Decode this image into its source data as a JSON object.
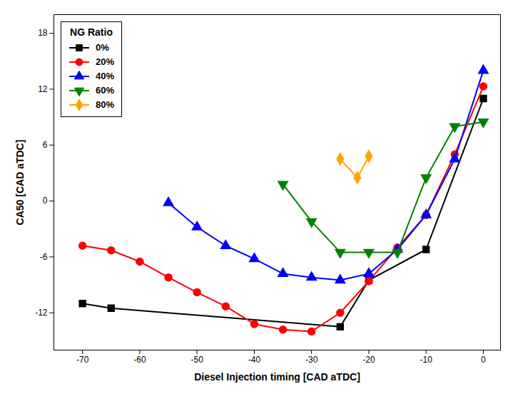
{
  "chart_data": {
    "type": "line",
    "xlabel": "Diesel Injection timing [CAD aTDC]",
    "ylabel": "CA50 [CAD aTDC]",
    "xlim": [
      -75,
      3
    ],
    "ylim": [
      -16,
      20
    ],
    "xticks": [
      -70,
      -60,
      -50,
      -40,
      -30,
      -20,
      -10,
      0
    ],
    "yticks": [
      -12,
      -6,
      0,
      6,
      12,
      18
    ],
    "grid": false,
    "legend": "upper left",
    "legend_title": "NG Ratio",
    "series": [
      {
        "name": "0%",
        "color": "black",
        "marker": "square",
        "x": [
          -70,
          -65,
          -25,
          -20,
          -10,
          0
        ],
        "values": [
          -11.0,
          -11.5,
          -13.5,
          -8.5,
          -5.2,
          11.0
        ]
      },
      {
        "name": "20%",
        "color": "red",
        "marker": "circle",
        "x": [
          -70,
          -65,
          -60,
          -55,
          -50,
          -45,
          -40,
          -35,
          -30,
          -25,
          -20,
          -15,
          -10,
          -5,
          0
        ],
        "values": [
          -4.8,
          -5.3,
          -6.5,
          -8.2,
          -9.8,
          -11.3,
          -13.2,
          -13.8,
          -14.0,
          -12.0,
          -8.6,
          -5.0,
          -1.5,
          5.0,
          12.3
        ]
      },
      {
        "name": "40%",
        "color": "blue",
        "marker": "triangle-up",
        "x": [
          -55,
          -50,
          -45,
          -40,
          -35,
          -30,
          -25,
          -20,
          -15,
          -10,
          -5,
          0
        ],
        "values": [
          -0.2,
          -2.8,
          -4.8,
          -6.2,
          -7.8,
          -8.2,
          -8.5,
          -7.8,
          -5.2,
          -1.5,
          4.5,
          14.0
        ]
      },
      {
        "name": "60%",
        "color": "green",
        "marker": "triangle-down",
        "x": [
          -35,
          -30,
          -25,
          -20,
          -15,
          -10,
          -5,
          0
        ],
        "values": [
          1.8,
          -2.2,
          -5.5,
          -5.5,
          -5.5,
          2.5,
          8.0,
          8.5
        ]
      },
      {
        "name": "80%",
        "color": "orange",
        "marker": "diamond",
        "x": [
          -25,
          -22,
          -20
        ],
        "values": [
          4.5,
          2.5,
          4.8
        ]
      }
    ]
  }
}
